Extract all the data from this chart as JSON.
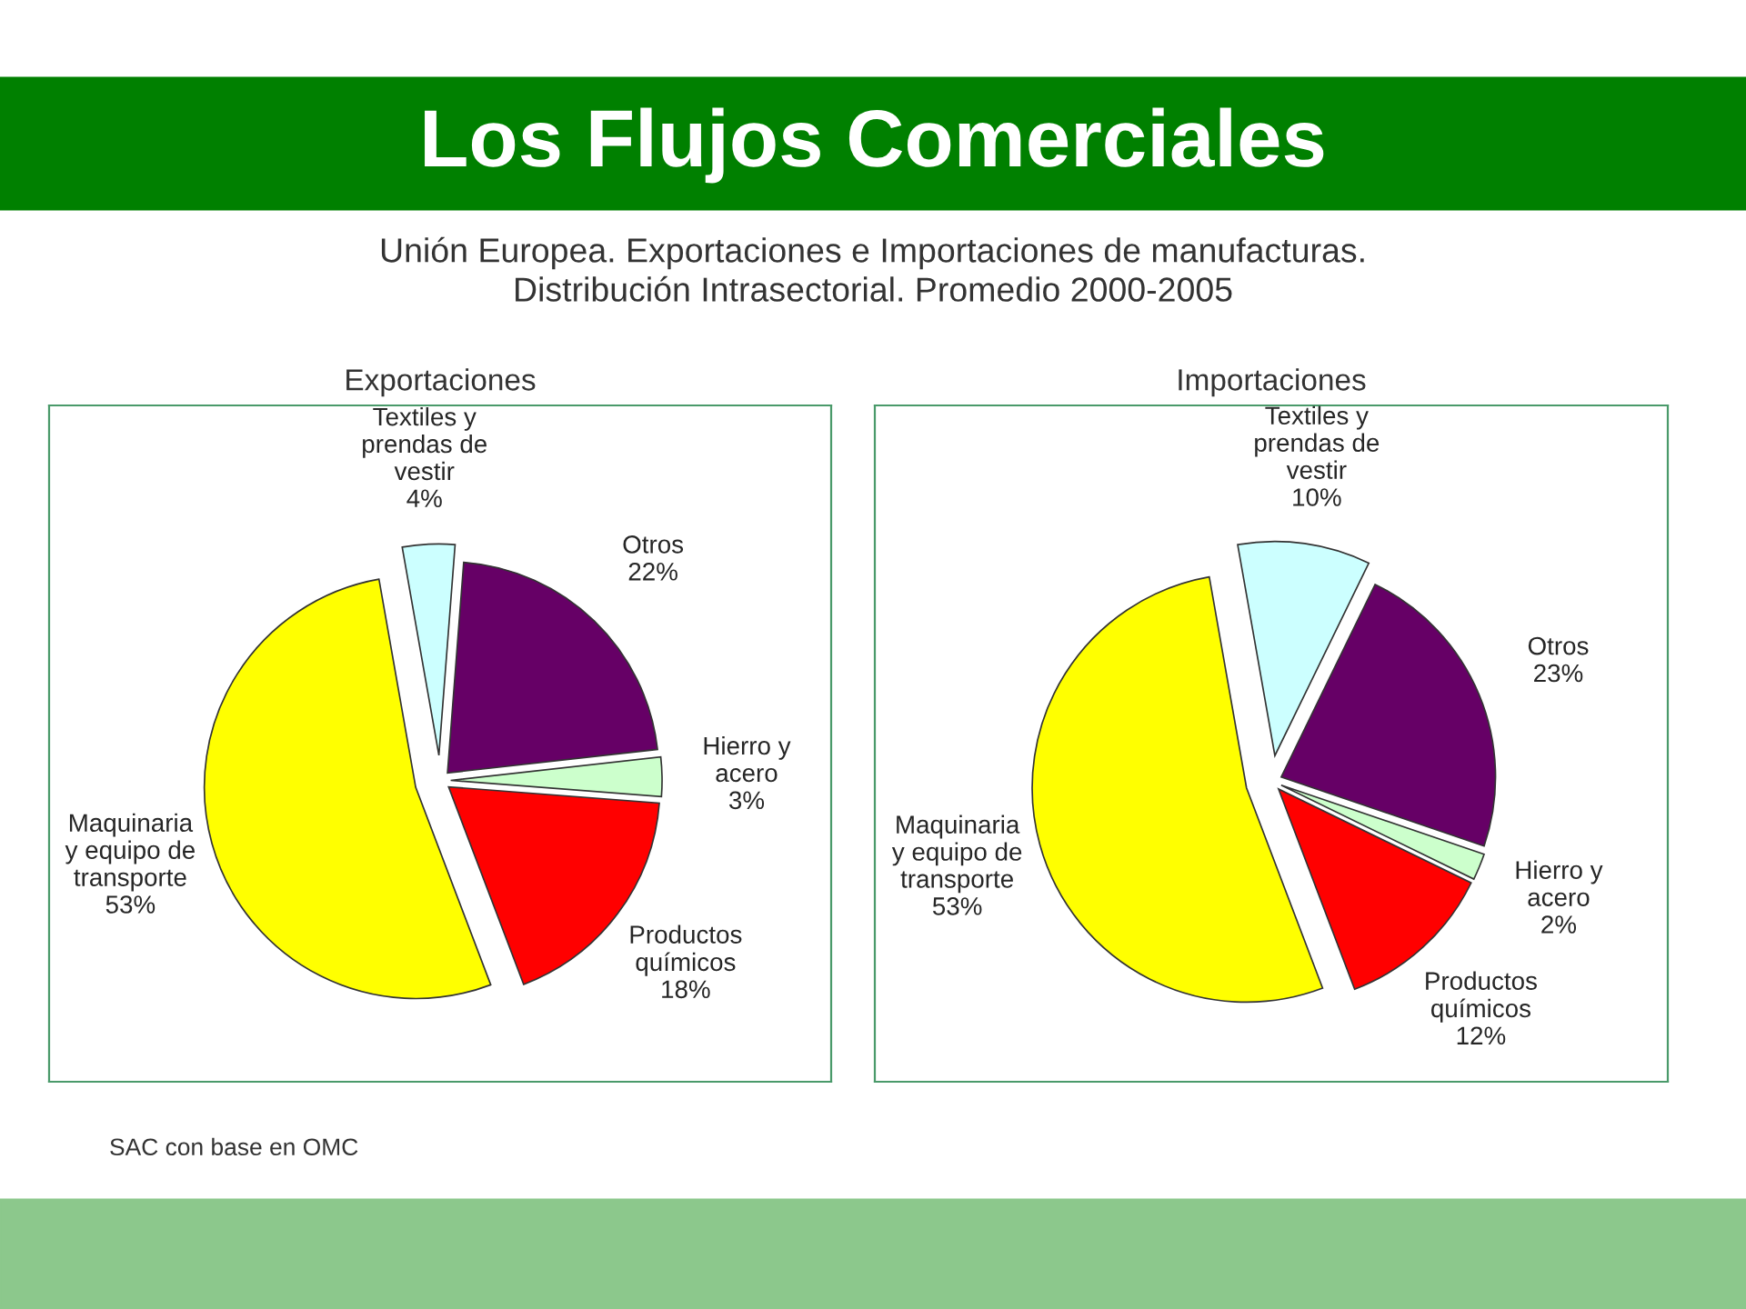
{
  "chart_data": [
    {
      "type": "pie",
      "title": "Exportaciones",
      "annotations": [
        "Los Flujos Comerciales",
        "Unión Europea. Exportaciones e Importaciones de manufacturas.\nDistribución Intrasectorial. Promedio 2000-2005",
        "SAC con base en OMC"
      ],
      "categories": [
        "Textiles y\nprendas de\nvestir",
        "Otros",
        "Hierro y\nacero",
        "Productos\nquímicos",
        "Maquinaria\ny equipo de\ntransporte"
      ],
      "values": [
        4,
        22,
        3,
        18,
        53
      ],
      "value_labels": [
        "4%",
        "22%",
        "3%",
        "18%",
        "53%"
      ],
      "colors": [
        "#ccffff",
        "#660066",
        "#ccffcc",
        "#ff0000",
        "#ffff00"
      ]
    },
    {
      "type": "pie",
      "title": "Importaciones",
      "categories": [
        "Textiles y\nprendas de\nvestir",
        "Otros",
        "Hierro y\nacero",
        "Productos\nquímicos",
        "Maquinaria\ny equipo de\ntransporte"
      ],
      "values": [
        10,
        23,
        2,
        12,
        53
      ],
      "value_labels": [
        "10%",
        "23%",
        "2%",
        "12%",
        "53%"
      ],
      "colors": [
        "#ccffff",
        "#660066",
        "#ccffcc",
        "#ff0000",
        "#ffff00"
      ]
    }
  ]
}
